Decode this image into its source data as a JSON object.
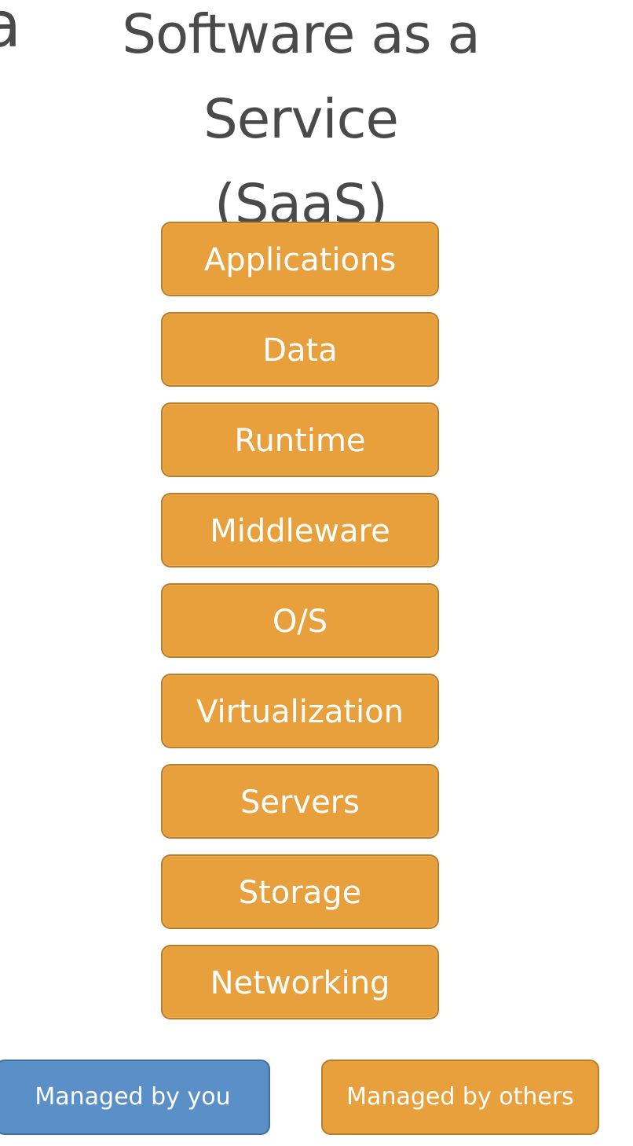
{
  "clipped_text": "a",
  "title": {
    "line1": "Software as a",
    "line2": "Service",
    "line3": "(SaaS)"
  },
  "layers": [
    "Applications",
    "Data",
    "Runtime",
    "Middleware",
    "O/S",
    "Virtualization",
    "Servers",
    "Storage",
    "Networking"
  ],
  "legend": {
    "you": "Managed by you",
    "others": "Managed by others"
  },
  "colors": {
    "managed_by_you": "#5b8fc8",
    "managed_by_others": "#e8a03c"
  }
}
